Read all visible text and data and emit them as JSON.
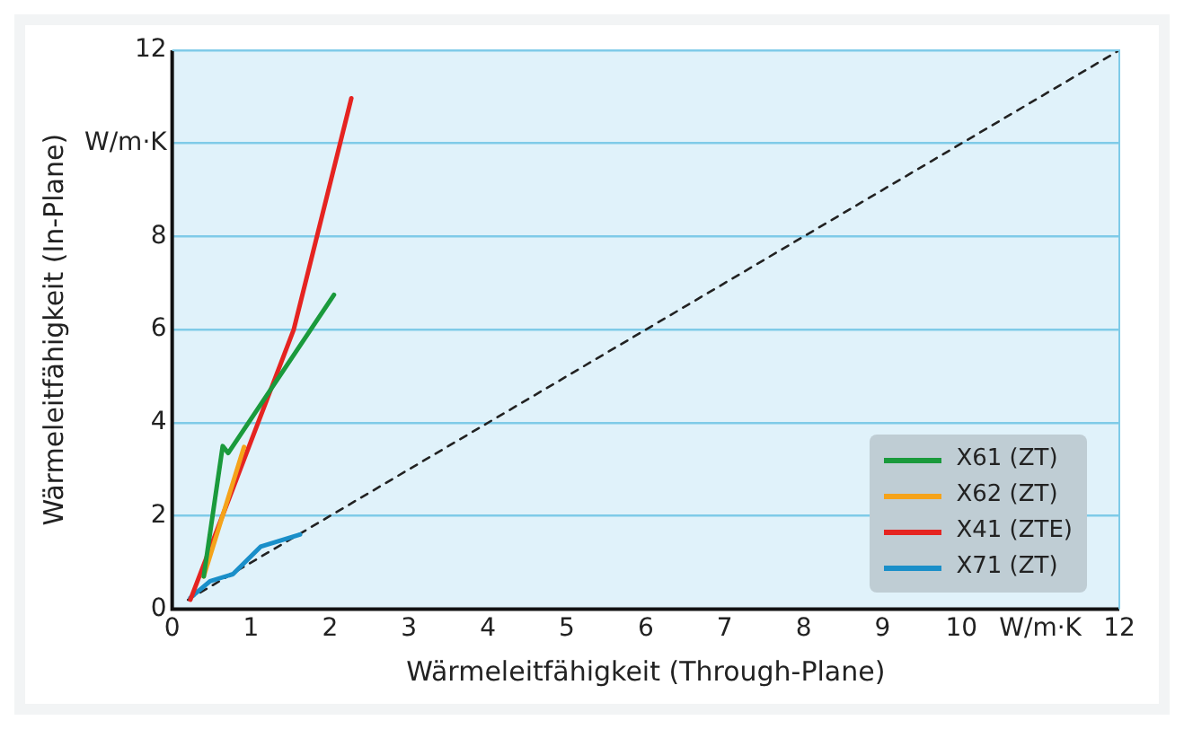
{
  "chart_data": {
    "type": "line",
    "xlabel": "Wärmeleitfähigkeit (Through-Plane)",
    "ylabel": "Wärmeleitfähigkeit (In-Plane)",
    "xlim": [
      0,
      12
    ],
    "ylim": [
      0,
      12
    ],
    "xticks": [
      0,
      1,
      2,
      3,
      4,
      5,
      6,
      7,
      8,
      9,
      10,
      {
        "value": 11,
        "label": "W/m·K"
      },
      12
    ],
    "yticks": [
      0,
      2,
      4,
      6,
      8,
      {
        "value": 10,
        "label": "W/m·K"
      },
      12
    ],
    "grid": "y",
    "legend": "bottom right",
    "marker": "none",
    "series": [
      {
        "name": "X61 (ZT)",
        "color": "#1a9a3c",
        "x": [
          0.4,
          0.64,
          0.71,
          2.05
        ],
        "values": [
          0.7,
          3.5,
          3.35,
          6.75
        ]
      },
      {
        "name": "X62 (ZT)",
        "color": "#f5a31a",
        "x": [
          0.4,
          0.91
        ],
        "values": [
          0.7,
          3.48
        ]
      },
      {
        "name": "X41 (ZTE)",
        "color": "#e52421",
        "x": [
          0.23,
          1.54,
          2.27
        ],
        "values": [
          0.2,
          6.0,
          10.97
        ]
      },
      {
        "name": "X71 (ZT)",
        "color": "#1a8fc9",
        "x": [
          0.23,
          0.48,
          0.77,
          1.12,
          1.62
        ],
        "values": [
          0.24,
          0.6,
          0.75,
          1.34,
          1.6
        ]
      },
      {
        "color": "#222222",
        "line_style": "dashed",
        "x": [
          0.2,
          12
        ],
        "values": [
          0.2,
          12
        ]
      }
    ]
  }
}
